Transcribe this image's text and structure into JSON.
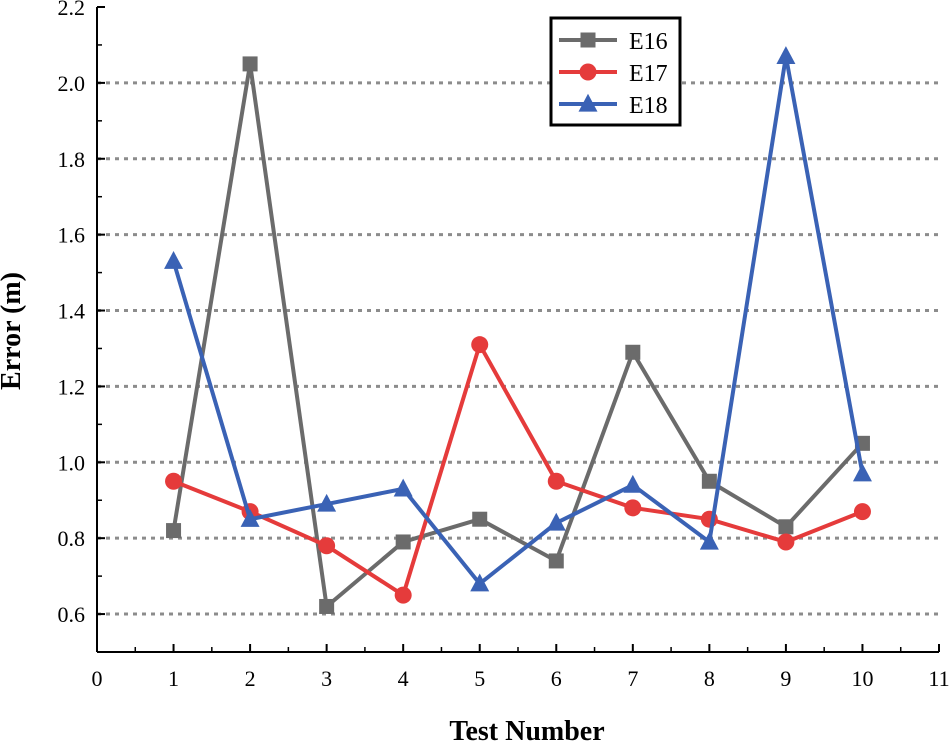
{
  "chart_data": {
    "type": "line",
    "title": "",
    "xlabel": "Test Number",
    "ylabel": "Error (m)",
    "xlim": [
      0,
      11
    ],
    "ylim": [
      0.5,
      2.2
    ],
    "x_ticks": [
      "0",
      "1",
      "2",
      "3",
      "4",
      "5",
      "6",
      "7",
      "8",
      "9",
      "10",
      "11"
    ],
    "y_ticks": [
      "0.6",
      "0.8",
      "1.0",
      "1.2",
      "1.4",
      "1.6",
      "1.8",
      "2.0",
      "2.2"
    ],
    "grid": "horizontal dotted",
    "legend_position": "top-center",
    "x": [
      1,
      2,
      3,
      4,
      5,
      6,
      7,
      8,
      9,
      10
    ],
    "series": [
      {
        "name": "E16",
        "marker": "square",
        "color": "#6b6b6b",
        "values": [
          0.82,
          2.05,
          0.62,
          0.79,
          0.85,
          0.74,
          1.29,
          0.95,
          0.83,
          1.05
        ]
      },
      {
        "name": "E17",
        "marker": "circle",
        "color": "#e53b3b",
        "values": [
          0.95,
          0.87,
          0.78,
          0.65,
          1.31,
          0.95,
          0.88,
          0.85,
          0.79,
          0.87
        ]
      },
      {
        "name": "E18",
        "marker": "triangle",
        "color": "#3a62b5",
        "values": [
          1.53,
          0.85,
          0.89,
          0.93,
          0.68,
          0.84,
          0.94,
          0.79,
          2.07,
          0.97
        ]
      }
    ]
  }
}
